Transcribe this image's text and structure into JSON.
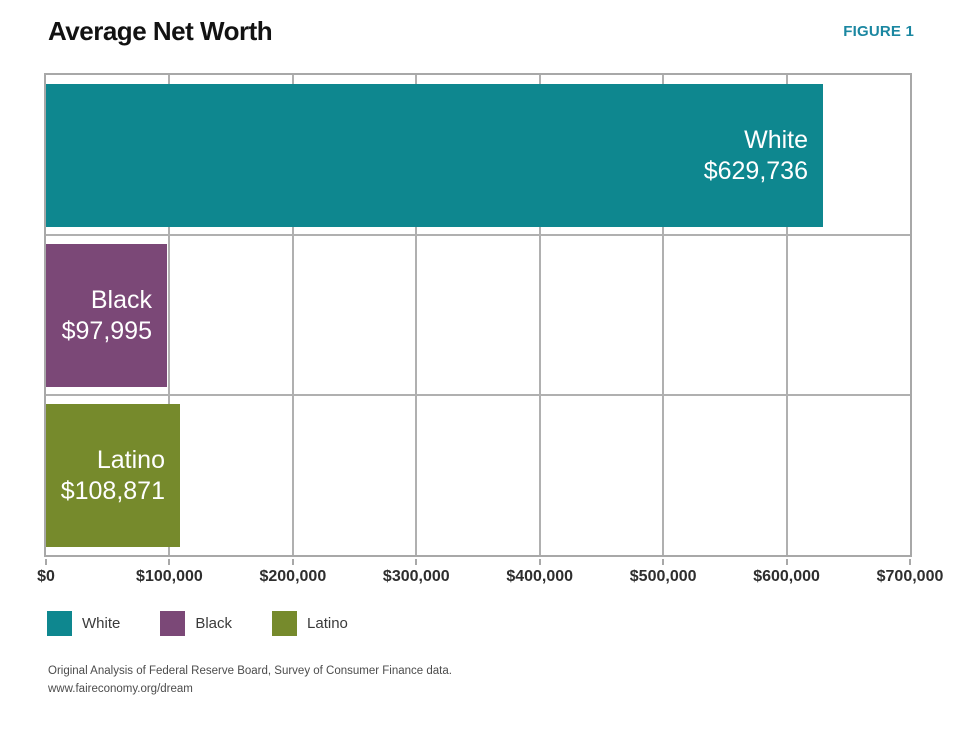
{
  "header": {
    "title": "Average Net Worth",
    "figure_label": "FIGURE 1"
  },
  "chart_data": {
    "type": "bar",
    "orientation": "horizontal",
    "title": "Average Net Worth",
    "categories": [
      "White",
      "Black",
      "Latino"
    ],
    "values": [
      629736,
      97995,
      108871
    ],
    "value_labels": [
      "$629,736",
      "$97,995",
      "$108,871"
    ],
    "bar_colors": [
      "#0e878f",
      "#7b4877",
      "#768a2c"
    ],
    "xlim": [
      0,
      700000
    ],
    "x_ticks": [
      "$0",
      "$100,000",
      "$200,000",
      "$300,000",
      "$400,000",
      "$500,000",
      "$600,000",
      "$700,000"
    ],
    "grid": true,
    "legend_position": "bottom-left",
    "legend": [
      {
        "label": "White",
        "color": "#0e878f"
      },
      {
        "label": "Black",
        "color": "#7b4877"
      },
      {
        "label": "Latino",
        "color": "#768a2c"
      }
    ]
  },
  "footer": {
    "source": "Original Analysis of Federal Reserve Board, Survey of Consumer Finance data.",
    "url": "www.faireconomy.org/dream"
  },
  "colors": {
    "figure_label": "#1b87a1",
    "grid": "#b0b0b0",
    "axis_text": "#2e2e2e"
  }
}
